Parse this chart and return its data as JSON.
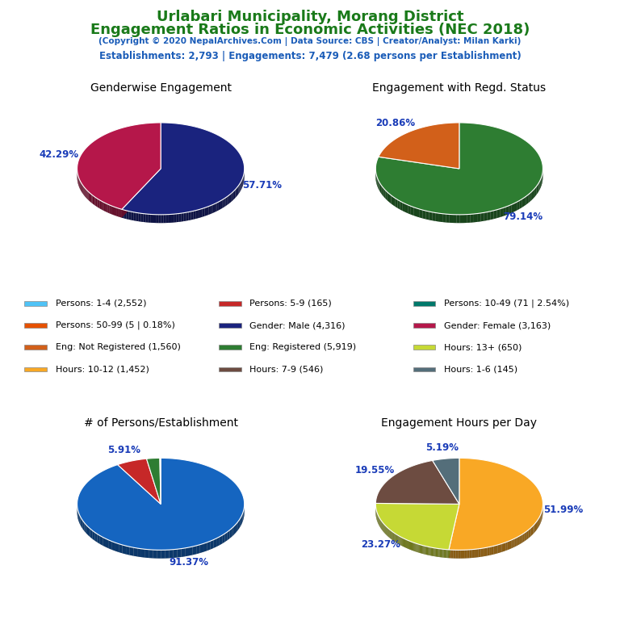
{
  "title_line1": "Urlabari Municipality, Morang District",
  "title_line2": "Engagement Ratios in Economic Activities (NEC 2018)",
  "subtitle": "(Copyright © 2020 NepalArchives.Com | Data Source: CBS | Creator/Analyst: Milan Karki)",
  "stats_line": "Establishments: 2,793 | Engagements: 7,479 (2.68 persons per Establishment)",
  "title_color": "#1a7a1a",
  "subtitle_color": "#1a5cb8",
  "stats_color": "#1a5cb8",
  "pie1_title": "Genderwise Engagement",
  "pie1_values": [
    57.71,
    42.29
  ],
  "pie1_colors": [
    "#1a237e",
    "#b5174a"
  ],
  "pie1_labels": [
    "57.71%",
    "42.29%"
  ],
  "pie1_startangle": 90,
  "pie2_title": "Engagement with Regd. Status",
  "pie2_values": [
    79.14,
    20.86
  ],
  "pie2_colors": [
    "#2e7d32",
    "#d2601a"
  ],
  "pie2_labels": [
    "79.14%",
    "20.86%"
  ],
  "pie2_startangle": 90,
  "pie3_title": "# of Persons/Establishment",
  "pie3_values": [
    91.37,
    5.91,
    2.54,
    0.18
  ],
  "pie3_colors": [
    "#1565c0",
    "#c62828",
    "#2e7d32",
    "#e65100"
  ],
  "pie3_labels": [
    "91.37%",
    "5.91%",
    "",
    ""
  ],
  "pie3_startangle": 90,
  "pie4_title": "Engagement Hours per Day",
  "pie4_values": [
    51.99,
    23.27,
    19.55,
    5.19
  ],
  "pie4_colors": [
    "#f9a825",
    "#c6d935",
    "#6d4c41",
    "#546e7a"
  ],
  "pie4_labels": [
    "51.99%",
    "23.27%",
    "19.55%",
    "5.19%"
  ],
  "pie4_startangle": 90,
  "label_color": "#1a3cb8",
  "legend_items": [
    {
      "label": "Persons: 1-4 (2,552)",
      "color": "#4fc3f7"
    },
    {
      "label": "Persons: 5-9 (165)",
      "color": "#c62828"
    },
    {
      "label": "Persons: 10-49 (71 | 2.54%)",
      "color": "#00796b"
    },
    {
      "label": "Persons: 50-99 (5 | 0.18%)",
      "color": "#e65100"
    },
    {
      "label": "Gender: Male (4,316)",
      "color": "#1a237e"
    },
    {
      "label": "Gender: Female (3,163)",
      "color": "#b5174a"
    },
    {
      "label": "Eng: Not Registered (1,560)",
      "color": "#d2601a"
    },
    {
      "label": "Eng: Registered (5,919)",
      "color": "#2e7d32"
    },
    {
      "label": "Hours: 13+ (650)",
      "color": "#c6d935"
    },
    {
      "label": "Hours: 10-12 (1,452)",
      "color": "#f9a825"
    },
    {
      "label": "Hours: 7-9 (546)",
      "color": "#6d4c41"
    },
    {
      "label": "Hours: 1-6 (145)",
      "color": "#546e7a"
    }
  ]
}
